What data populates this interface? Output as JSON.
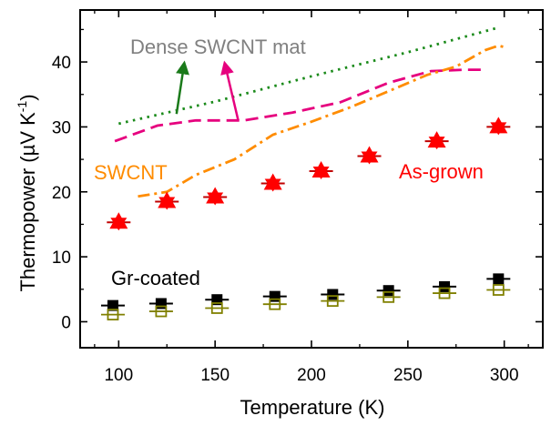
{
  "chart_data": {
    "type": "scatter",
    "title": "",
    "xlabel": "Temperature (K)",
    "ylabel": "Thermopower (µV K⁻¹)",
    "ylabel_parts": {
      "main": "Thermopower (",
      "mu": "µ",
      "unit": "V K",
      "exp": "-1",
      "close": ")"
    },
    "xlim": [
      80,
      320
    ],
    "ylim": [
      -4,
      48
    ],
    "xticks": [
      100,
      150,
      200,
      250,
      300
    ],
    "yticks": [
      0,
      10,
      20,
      30,
      40
    ],
    "grid": false,
    "annotations": {
      "dense": "Dense SWCNT mat",
      "swcnt": "SWCNT",
      "asgrown": "As-grown",
      "grcoated": "Gr-coated"
    },
    "colors": {
      "dense": "#1a8a1a",
      "swcnt": "#ff8c00",
      "asgrown": "#ff0000",
      "grcoated": "#000000",
      "open": "#808000",
      "magenta": "#e6007e",
      "green_arrow": "#1a7a1a",
      "dense_text": "#808080"
    },
    "series": [
      {
        "name": "Dense SWCNT mat",
        "style": "dotted-line",
        "x": [
          100,
          150,
          200,
          250,
          297
        ],
        "y": [
          30.5,
          33.9,
          37.8,
          41.5,
          45.3
        ]
      },
      {
        "style": "dashed-line",
        "x": [
          98,
          120,
          140,
          165,
          190,
          215,
          240,
          262,
          280,
          290
        ],
        "y": [
          27.8,
          30.2,
          31.0,
          31.0,
          32.2,
          33.8,
          36.8,
          38.6,
          38.8,
          38.8
        ]
      },
      {
        "name": "SWCNT",
        "style": "dash-dot-line",
        "x": [
          110,
          125,
          140,
          160,
          180,
          200,
          220,
          240,
          260,
          275,
          290,
          297,
          300
        ],
        "y": [
          19.3,
          20.0,
          22.6,
          25.0,
          28.8,
          30.8,
          33.0,
          35.5,
          38.0,
          39.3,
          41.8,
          42.5,
          42.3
        ]
      },
      {
        "name": "As-grown",
        "style": "star-marker",
        "x": [
          100,
          125,
          150,
          180,
          205,
          230,
          265,
          297
        ],
        "y": [
          15.3,
          18.5,
          19.2,
          21.3,
          23.2,
          25.5,
          27.8,
          30.0
        ]
      },
      {
        "name": "Gr-coated",
        "style": "filled-square",
        "x": [
          97,
          122,
          151,
          181,
          211,
          240,
          269,
          297
        ],
        "y": [
          2.5,
          2.8,
          3.4,
          3.9,
          4.2,
          4.8,
          5.4,
          6.6
        ]
      },
      {
        "style": "open-square",
        "x": [
          97,
          122,
          151,
          181,
          211,
          240,
          269,
          297
        ],
        "y": [
          1.1,
          1.6,
          2.1,
          2.7,
          3.2,
          3.8,
          4.4,
          4.9
        ]
      }
    ],
    "arrows": [
      {
        "from": [
          130,
          32.0
        ],
        "to": [
          134,
          39.8
        ],
        "color_key": "green_arrow"
      },
      {
        "from": [
          162,
          31.0
        ],
        "to": [
          155,
          39.8
        ],
        "color_key": "magenta"
      }
    ]
  }
}
